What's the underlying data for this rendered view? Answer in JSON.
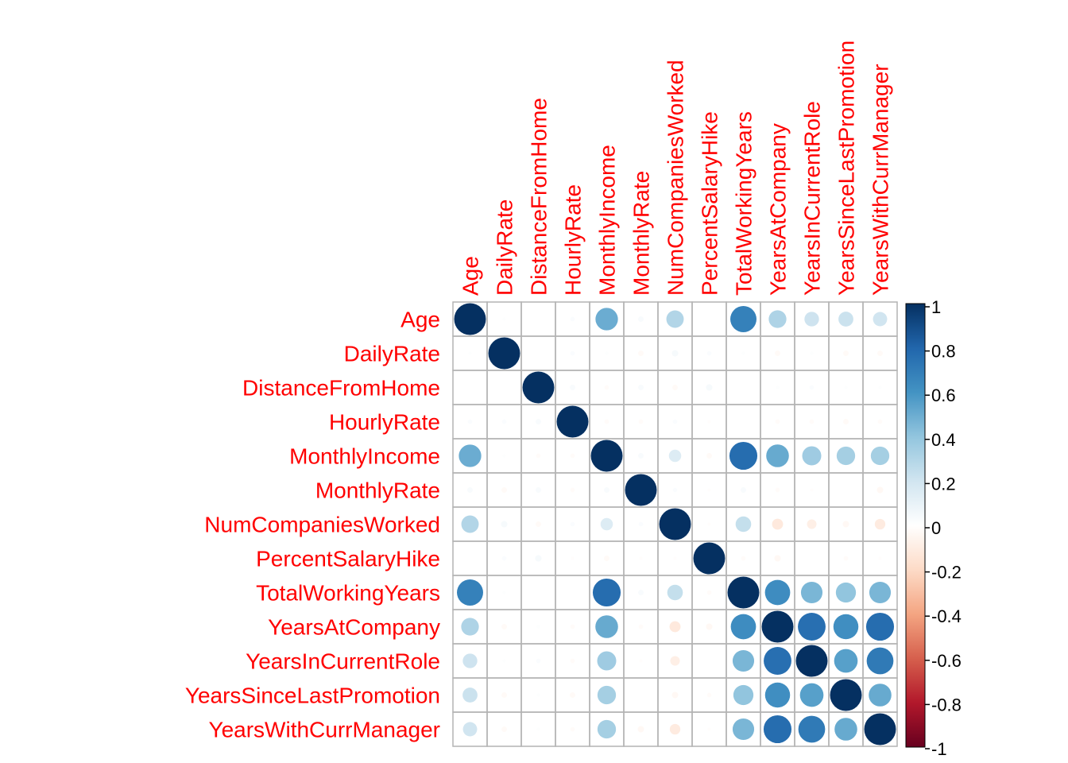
{
  "chart_data": {
    "type": "heatmap",
    "method": "circle",
    "variables": [
      "Age",
      "DailyRate",
      "DistanceFromHome",
      "HourlyRate",
      "MonthlyIncome",
      "MonthlyRate",
      "NumCompaniesWorked",
      "PercentSalaryHike",
      "TotalWorkingYears",
      "YearsAtCompany",
      "YearsInCurrentRole",
      "YearsSinceLastPromotion",
      "YearsWithCurrManager"
    ],
    "matrix": [
      [
        1.0,
        0.01,
        -0.0,
        0.02,
        0.5,
        0.03,
        0.3,
        0.0,
        0.68,
        0.31,
        0.21,
        0.22,
        0.2
      ],
      [
        0.01,
        1.0,
        -0.0,
        0.02,
        0.01,
        -0.03,
        0.04,
        0.02,
        0.01,
        -0.03,
        0.01,
        -0.03,
        -0.03
      ],
      [
        -0.0,
        -0.0,
        1.0,
        0.03,
        -0.02,
        0.03,
        -0.03,
        0.04,
        0.0,
        0.01,
        0.02,
        0.01,
        0.01
      ],
      [
        0.02,
        0.02,
        0.03,
        1.0,
        -0.02,
        -0.02,
        0.02,
        -0.01,
        -0.0,
        -0.02,
        -0.02,
        -0.03,
        -0.02
      ],
      [
        0.5,
        0.01,
        -0.02,
        -0.02,
        1.0,
        0.03,
        0.15,
        -0.03,
        0.77,
        0.51,
        0.36,
        0.34,
        0.34
      ],
      [
        0.03,
        -0.03,
        0.03,
        -0.02,
        0.03,
        1.0,
        0.02,
        -0.01,
        0.03,
        -0.02,
        -0.01,
        0.0,
        -0.04
      ],
      [
        0.3,
        0.04,
        -0.03,
        0.02,
        0.15,
        0.02,
        1.0,
        -0.01,
        0.24,
        -0.12,
        -0.09,
        -0.04,
        -0.11
      ],
      [
        0.0,
        0.02,
        0.04,
        -0.01,
        -0.03,
        -0.01,
        -0.01,
        1.0,
        -0.02,
        -0.04,
        -0.0,
        -0.02,
        -0.01
      ],
      [
        0.68,
        0.01,
        0.0,
        -0.0,
        0.77,
        0.03,
        0.24,
        -0.02,
        1.0,
        0.63,
        0.46,
        0.4,
        0.46
      ],
      [
        0.31,
        -0.03,
        0.01,
        -0.02,
        0.51,
        -0.02,
        -0.12,
        -0.04,
        0.63,
        1.0,
        0.76,
        0.62,
        0.77
      ],
      [
        0.21,
        0.01,
        0.02,
        -0.02,
        0.36,
        -0.01,
        -0.09,
        -0.0,
        0.46,
        0.76,
        1.0,
        0.55,
        0.71
      ],
      [
        0.22,
        -0.03,
        0.01,
        -0.03,
        0.34,
        0.0,
        -0.04,
        -0.02,
        0.4,
        0.62,
        0.55,
        1.0,
        0.51
      ],
      [
        0.2,
        -0.03,
        0.01,
        -0.02,
        0.34,
        -0.04,
        -0.11,
        -0.01,
        0.46,
        0.77,
        0.71,
        0.51,
        1.0
      ]
    ],
    "colorbar": {
      "ticks": [
        "1",
        "0.8",
        "0.6",
        "0.4",
        "0.2",
        "0",
        "-0.2",
        "-0.4",
        "-0.6",
        "-0.8",
        "-1"
      ],
      "range": [
        -1,
        1
      ]
    },
    "colors": {
      "label": "#ff0000",
      "grid": "#b3b3b3",
      "palette": [
        "#67001f",
        "#b2182b",
        "#d6604d",
        "#f4a582",
        "#fddbc7",
        "#ffffff",
        "#d1e5f0",
        "#92c5de",
        "#4393c3",
        "#2166ac",
        "#053061"
      ]
    }
  }
}
